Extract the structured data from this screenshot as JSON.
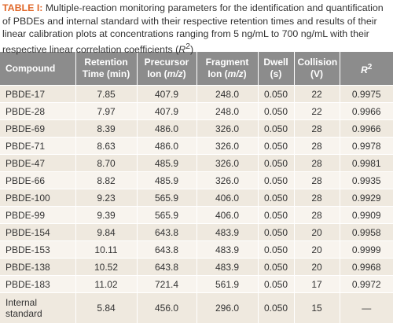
{
  "caption": {
    "label": "TABLE I:",
    "text": "Multiple-reaction monitoring parameters for the identification and quantification of PBDEs and internal standard with their respective retention times and results of their linear calibration plots at concentrations ranging from 5 ng/mL to 700 ng/mL with their respective linear correlation coefficients (",
    "italic": "R",
    "sup": "2",
    "end": ")"
  },
  "table": {
    "header": [
      {
        "text": "Compound"
      },
      {
        "text": "Retention Time (min)"
      },
      {
        "text": "Precursor Ion (",
        "italic": "m/z",
        "after": ")"
      },
      {
        "text": "Fragment Ion (",
        "italic": "m/z",
        "after": ")"
      },
      {
        "text": "Dwell (s)"
      },
      {
        "text": "Collision (V)"
      },
      {
        "italic": "R",
        "sup": "2"
      }
    ],
    "rows": [
      [
        "PBDE-17",
        "7.85",
        "407.9",
        "248.0",
        "0.050",
        "22",
        "0.9975"
      ],
      [
        "PBDE-28",
        "7.97",
        "407.9",
        "248.0",
        "0.050",
        "22",
        "0.9966"
      ],
      [
        "PBDE-69",
        "8.39",
        "486.0",
        "326.0",
        "0.050",
        "28",
        "0.9966"
      ],
      [
        "PBDE-71",
        "8.63",
        "486.0",
        "326.0",
        "0.050",
        "28",
        "0.9978"
      ],
      [
        "PBDE-47",
        "8.70",
        "485.9",
        "326.0",
        "0.050",
        "28",
        "0.9981"
      ],
      [
        "PBDE-66",
        "8.82",
        "485.9",
        "326.0",
        "0.050",
        "28",
        "0.9935"
      ],
      [
        "PBDE-100",
        "9.23",
        "565.9",
        "406.0",
        "0.050",
        "28",
        "0.9929"
      ],
      [
        "PBDE-99",
        "9.39",
        "565.9",
        "406.0",
        "0.050",
        "28",
        "0.9909"
      ],
      [
        "PBDE-154",
        "9.84",
        "643.8",
        "483.9",
        "0.050",
        "20",
        "0.9958"
      ],
      [
        "PBDE-153",
        "10.11",
        "643.8",
        "483.9",
        "0.050",
        "20",
        "0.9999"
      ],
      [
        "PBDE-138",
        "10.52",
        "643.8",
        "483.9",
        "0.050",
        "20",
        "0.9968"
      ],
      [
        "PBDE-183",
        "11.02",
        "721.4",
        "561.9",
        "0.050",
        "17",
        "0.9972"
      ],
      [
        "Internal standard",
        "5.84",
        "456.0",
        "296.0",
        "0.050",
        "15",
        "—"
      ]
    ]
  }
}
